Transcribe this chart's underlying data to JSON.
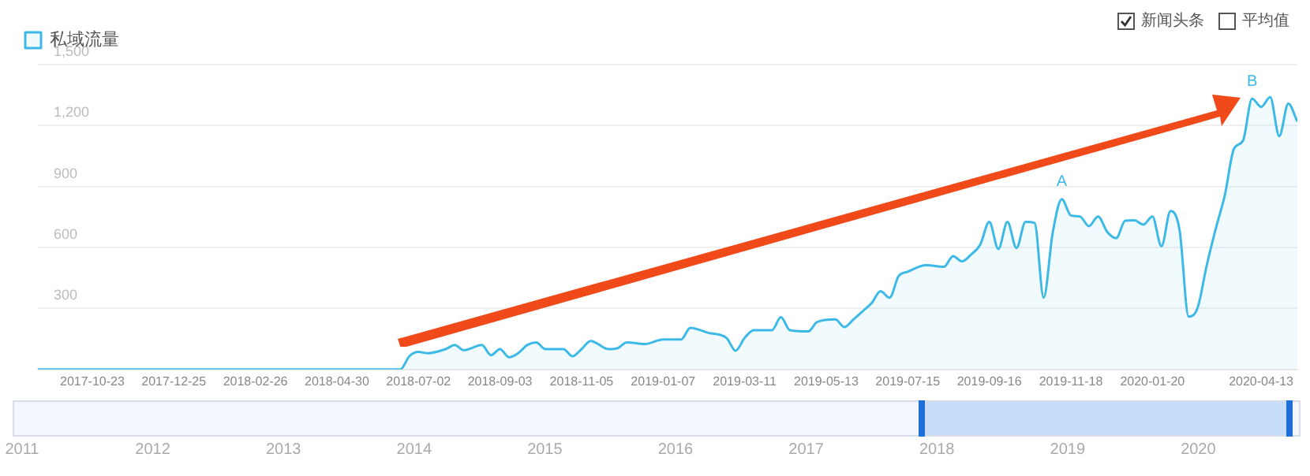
{
  "chart_data": {
    "type": "area",
    "legend": "top left",
    "grid": "y",
    "marker": "none",
    "line_style": "solid",
    "xlim": [
      "2017-09-11",
      "2020-05-11"
    ],
    "xticks": [
      "2017-10-23",
      "2017-12-25",
      "2018-02-26",
      "2018-04-30",
      "2018-07-02",
      "2018-09-03",
      "2018-11-05",
      "2019-01-07",
      "2019-03-11",
      "2019-05-13",
      "2019-07-15",
      "2019-09-16",
      "2019-11-18",
      "2020-01-20",
      "2020-04-13"
    ],
    "ylim": [
      0,
      1500
    ],
    "yticks": [
      {
        "value": 0,
        "label": null
      },
      {
        "value": 300,
        "label": "300"
      },
      {
        "value": 600,
        "label": "600"
      },
      {
        "value": 900,
        "label": "900"
      },
      {
        "value": 1200,
        "label": "1,200"
      },
      {
        "value": 1500,
        "label": "1,500"
      }
    ],
    "series": [
      {
        "name": "私域流量",
        "color": "#3cb9e6",
        "x": [
          "2017-09-11",
          "2018-06-18",
          "2018-06-25",
          "2018-07-02",
          "2018-07-09",
          "2018-07-23",
          "2018-07-30",
          "2018-08-06",
          "2018-08-20",
          "2018-08-27",
          "2018-09-03",
          "2018-09-10",
          "2018-09-17",
          "2018-09-24",
          "2018-10-01",
          "2018-10-08",
          "2018-10-22",
          "2018-10-29",
          "2018-11-05",
          "2018-11-12",
          "2018-11-26",
          "2018-12-03",
          "2018-12-10",
          "2018-12-24",
          "2019-01-07",
          "2019-01-21",
          "2019-01-28",
          "2019-02-11",
          "2019-02-25",
          "2019-03-04",
          "2019-03-11",
          "2019-03-18",
          "2019-04-01",
          "2019-04-08",
          "2019-04-15",
          "2019-04-29",
          "2019-05-06",
          "2019-05-20",
          "2019-05-27",
          "2019-06-03",
          "2019-06-10",
          "2019-06-17",
          "2019-06-24",
          "2019-07-01",
          "2019-07-08",
          "2019-07-15",
          "2019-07-29",
          "2019-08-12",
          "2019-08-19",
          "2019-08-26",
          "2019-09-02",
          "2019-09-09",
          "2019-09-16",
          "2019-09-23",
          "2019-09-30",
          "2019-10-07",
          "2019-10-14",
          "2019-10-21",
          "2019-10-28",
          "2019-11-04",
          "2019-11-11",
          "2019-11-18",
          "2019-11-25",
          "2019-12-02",
          "2019-12-09",
          "2019-12-16",
          "2019-12-23",
          "2019-12-30",
          "2020-01-06",
          "2020-01-13",
          "2020-01-20",
          "2020-01-27",
          "2020-02-03",
          "2020-02-10",
          "2020-02-17",
          "2020-02-24",
          "2020-03-02",
          "2020-03-09",
          "2020-03-16",
          "2020-03-23",
          "2020-03-30",
          "2020-04-06",
          "2020-04-13",
          "2020-04-20",
          "2020-04-27",
          "2020-05-04",
          "2020-05-11"
        ],
        "values": [
          0,
          0,
          65,
          86,
          80,
          100,
          120,
          95,
          120,
          70,
          100,
          60,
          80,
          120,
          133,
          100,
          100,
          65,
          100,
          140,
          100,
          105,
          133,
          125,
          148,
          148,
          205,
          180,
          155,
          92,
          155,
          193,
          193,
          257,
          193,
          187,
          233,
          246,
          209,
          246,
          286,
          326,
          385,
          353,
          460,
          481,
          513,
          505,
          558,
          532,
          566,
          614,
          726,
          593,
          726,
          598,
          726,
          721,
          353,
          673,
          838,
          758,
          753,
          705,
          753,
          678,
          646,
          732,
          734,
          713,
          753,
          606,
          780,
          686,
          260,
          305,
          513,
          694,
          859,
          1086,
          1126,
          1332,
          1292,
          1340,
          1148,
          1308,
          1220
        ]
      }
    ],
    "annotations": [
      {
        "text": "A",
        "x": "2019-11-11",
        "y": 838
      },
      {
        "text": "B",
        "x": "2020-04-06",
        "y": 1332
      },
      "新闻头条",
      "平均值",
      "2011",
      "2012",
      "2013",
      "2014",
      "2015",
      "2016",
      "2017",
      "2018",
      "2019",
      "2020"
    ]
  }
}
